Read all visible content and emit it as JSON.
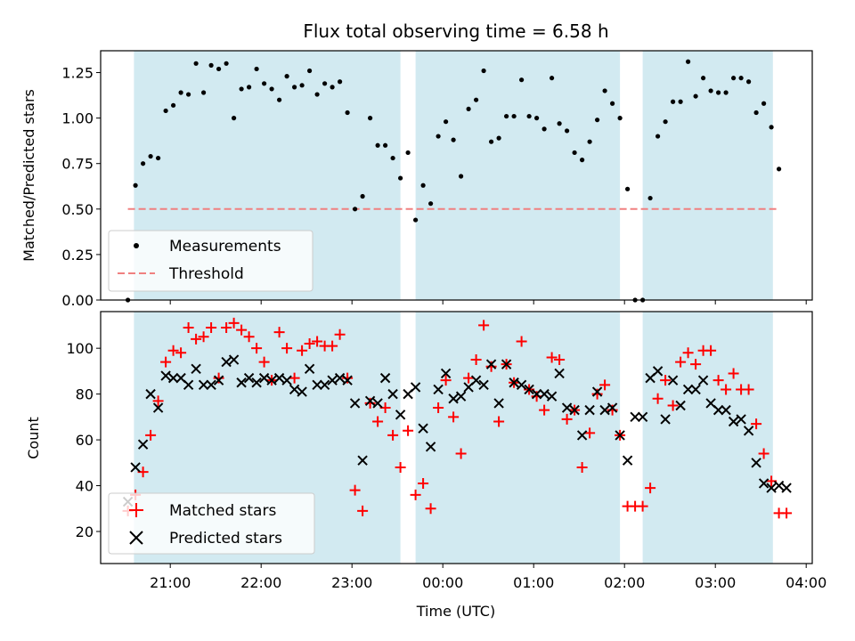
{
  "figure": {
    "title": "Flux total observing time = 6.58 h"
  },
  "colors": {
    "shade": "#add8e6",
    "threshold": "#f08080",
    "measurement": "#000000",
    "matched": "#ff0000",
    "predicted": "#000000"
  },
  "chart_data": [
    {
      "type": "scatter",
      "ylabel": "Matched/Predicted stars",
      "xlim": [
        "20:14",
        "04:04"
      ],
      "ylim": [
        0,
        1.37
      ],
      "yticks": [
        "0.00",
        "0.25",
        "0.50",
        "0.75",
        "1.00",
        "1.25"
      ],
      "ytick_values": [
        0,
        0.25,
        0.5,
        0.75,
        1.0,
        1.25
      ],
      "shaded_intervals": [
        [
          "20:36",
          "23:32"
        ],
        [
          "23:42",
          "01:57"
        ],
        [
          "02:12",
          "03:38"
        ]
      ],
      "threshold": {
        "value": 0.5,
        "x_start": "20:32",
        "x_end": "03:42"
      },
      "legend": {
        "position": "lower-left",
        "entries": [
          "Measurements",
          "Threshold"
        ]
      },
      "series": [
        {
          "name": "Measurements",
          "marker": "dot",
          "x": [
            "20:32",
            "20:37",
            "20:42",
            "20:47",
            "20:52",
            "20:57",
            "21:02",
            "21:07",
            "21:12",
            "21:17",
            "21:22",
            "21:27",
            "21:32",
            "21:37",
            "21:42",
            "21:47",
            "21:52",
            "21:57",
            "22:02",
            "22:07",
            "22:12",
            "22:17",
            "22:22",
            "22:27",
            "22:32",
            "22:37",
            "22:42",
            "22:47",
            "22:52",
            "22:57",
            "23:02",
            "23:07",
            "23:12",
            "23:17",
            "23:22",
            "23:27",
            "23:32",
            "23:37",
            "23:42",
            "23:47",
            "23:52",
            "23:57",
            "00:02",
            "00:07",
            "00:12",
            "00:17",
            "00:22",
            "00:27",
            "00:32",
            "00:37",
            "00:42",
            "00:47",
            "00:52",
            "00:57",
            "01:02",
            "01:07",
            "01:12",
            "01:17",
            "01:22",
            "01:27",
            "01:32",
            "01:37",
            "01:42",
            "01:47",
            "01:52",
            "01:57",
            "02:02",
            "02:07",
            "02:12",
            "02:17",
            "02:22",
            "02:27",
            "02:32",
            "02:37",
            "02:42",
            "02:47",
            "02:52",
            "02:57",
            "03:02",
            "03:07",
            "03:12",
            "03:17",
            "03:22",
            "03:27",
            "03:32",
            "03:37",
            "03:42"
          ],
          "y": [
            0.0,
            0.63,
            0.75,
            0.79,
            0.78,
            1.04,
            1.07,
            1.14,
            1.13,
            1.3,
            1.14,
            1.29,
            1.27,
            1.3,
            1.0,
            1.16,
            1.17,
            1.27,
            1.19,
            1.16,
            1.1,
            1.23,
            1.17,
            1.18,
            1.26,
            1.13,
            1.19,
            1.17,
            1.2,
            1.03,
            0.5,
            0.57,
            1.0,
            0.85,
            0.85,
            0.78,
            0.67,
            0.81,
            0.44,
            0.63,
            0.53,
            0.9,
            0.98,
            0.88,
            0.68,
            1.05,
            1.1,
            1.26,
            0.87,
            0.89,
            1.01,
            1.01,
            1.21,
            1.01,
            1.0,
            0.94,
            1.22,
            0.97,
            0.93,
            0.81,
            0.77,
            0.87,
            0.99,
            1.15,
            1.08,
            1.0,
            0.61,
            0.0,
            0.0,
            0.56,
            0.9,
            0.98,
            1.09,
            1.09,
            1.31,
            1.12,
            1.22,
            1.15,
            1.14,
            1.14,
            1.22,
            1.22,
            1.2,
            1.03,
            1.08,
            0.95,
            0.72
          ]
        }
      ]
    },
    {
      "type": "scatter",
      "xlabel": "Time (UTC)",
      "ylabel": "Count",
      "xlim": [
        "20:14",
        "04:04"
      ],
      "ylim": [
        6,
        116
      ],
      "yticks": [
        "20",
        "40",
        "60",
        "80",
        "100"
      ],
      "ytick_values": [
        20,
        40,
        60,
        80,
        100
      ],
      "xticks": [
        "21:00",
        "22:00",
        "23:00",
        "00:00",
        "01:00",
        "02:00",
        "03:00",
        "04:00"
      ],
      "shaded_intervals": [
        [
          "20:36",
          "23:32"
        ],
        [
          "23:42",
          "01:57"
        ],
        [
          "02:12",
          "03:38"
        ]
      ],
      "legend": {
        "position": "lower-left",
        "entries": [
          "Matched stars",
          "Predicted stars"
        ]
      },
      "series": [
        {
          "name": "Matched stars",
          "marker": "plus",
          "x": [
            "20:32",
            "20:37",
            "20:42",
            "20:47",
            "20:52",
            "20:57",
            "21:02",
            "21:07",
            "21:12",
            "21:17",
            "21:22",
            "21:27",
            "21:32",
            "21:37",
            "21:42",
            "21:47",
            "21:52",
            "21:57",
            "22:02",
            "22:07",
            "22:12",
            "22:17",
            "22:22",
            "22:27",
            "22:32",
            "22:37",
            "22:42",
            "22:47",
            "22:52",
            "22:57",
            "23:02",
            "23:07",
            "23:12",
            "23:17",
            "23:22",
            "23:27",
            "23:32",
            "23:37",
            "23:42",
            "23:47",
            "23:52",
            "23:57",
            "00:02",
            "00:07",
            "00:12",
            "00:17",
            "00:22",
            "00:27",
            "00:32",
            "00:37",
            "00:42",
            "00:47",
            "00:52",
            "00:57",
            "01:02",
            "01:07",
            "01:12",
            "01:17",
            "01:22",
            "01:27",
            "01:32",
            "01:37",
            "01:42",
            "01:47",
            "01:52",
            "01:57",
            "02:02",
            "02:07",
            "02:12",
            "02:17",
            "02:22",
            "02:27",
            "02:32",
            "02:37",
            "02:42",
            "02:47",
            "02:52",
            "02:57",
            "03:02",
            "03:07",
            "03:12",
            "03:17",
            "03:22",
            "03:27",
            "03:32",
            "03:37",
            "03:42",
            "03:47"
          ],
          "y": [
            29,
            36,
            46,
            62,
            77,
            94,
            99,
            98,
            109,
            104,
            105,
            109,
            87,
            109,
            111,
            108,
            105,
            100,
            94,
            86,
            107,
            100,
            87,
            99,
            102,
            103,
            101,
            101,
            106,
            87,
            38,
            29,
            76,
            68,
            74,
            62,
            48,
            64,
            36,
            41,
            30,
            74,
            86,
            70,
            54,
            87,
            95,
            110,
            92,
            68,
            93,
            85,
            103,
            82,
            79,
            73,
            96,
            95,
            69,
            73,
            48,
            63,
            80,
            84,
            73,
            62,
            31,
            31,
            31,
            39,
            78,
            86,
            75,
            94,
            98,
            93,
            99,
            99,
            86,
            82,
            89,
            82,
            82,
            67,
            54,
            42,
            28,
            28
          ]
        },
        {
          "name": "Predicted stars",
          "marker": "x",
          "x": [
            "20:32",
            "20:37",
            "20:42",
            "20:47",
            "20:52",
            "20:57",
            "21:02",
            "21:07",
            "21:12",
            "21:17",
            "21:22",
            "21:27",
            "21:32",
            "21:37",
            "21:42",
            "21:47",
            "21:52",
            "21:57",
            "22:02",
            "22:07",
            "22:12",
            "22:17",
            "22:22",
            "22:27",
            "22:32",
            "22:37",
            "22:42",
            "22:47",
            "22:52",
            "22:57",
            "23:02",
            "23:07",
            "23:12",
            "23:17",
            "23:22",
            "23:27",
            "23:32",
            "23:37",
            "23:42",
            "23:47",
            "23:52",
            "23:57",
            "00:02",
            "00:07",
            "00:12",
            "00:17",
            "00:22",
            "00:27",
            "00:32",
            "00:37",
            "00:42",
            "00:47",
            "00:52",
            "00:57",
            "01:02",
            "01:07",
            "01:12",
            "01:17",
            "01:22",
            "01:27",
            "01:32",
            "01:37",
            "01:42",
            "01:47",
            "01:52",
            "01:57",
            "02:02",
            "02:07",
            "02:12",
            "02:17",
            "02:22",
            "02:27",
            "02:32",
            "02:37",
            "02:42",
            "02:47",
            "02:52",
            "02:57",
            "03:02",
            "03:07",
            "03:12",
            "03:17",
            "03:22",
            "03:27",
            "03:32",
            "03:37",
            "03:42",
            "03:47"
          ],
          "y": [
            33,
            48,
            58,
            80,
            74,
            88,
            87,
            87,
            84,
            91,
            84,
            84,
            86,
            94,
            95,
            85,
            87,
            85,
            87,
            86,
            87,
            86,
            82,
            81,
            91,
            84,
            84,
            86,
            87,
            86,
            76,
            51,
            77,
            76,
            87,
            80,
            71,
            80,
            83,
            65,
            57,
            82,
            89,
            78,
            79,
            83,
            86,
            84,
            93,
            76,
            93,
            85,
            84,
            82,
            80,
            80,
            79,
            89,
            74,
            73,
            62,
            73,
            81,
            73,
            74,
            62,
            51,
            70,
            70,
            87,
            90,
            69,
            86,
            75,
            82,
            82,
            86,
            76,
            73,
            73,
            68,
            69,
            64,
            50,
            41,
            39,
            40,
            39
          ]
        }
      ]
    }
  ]
}
